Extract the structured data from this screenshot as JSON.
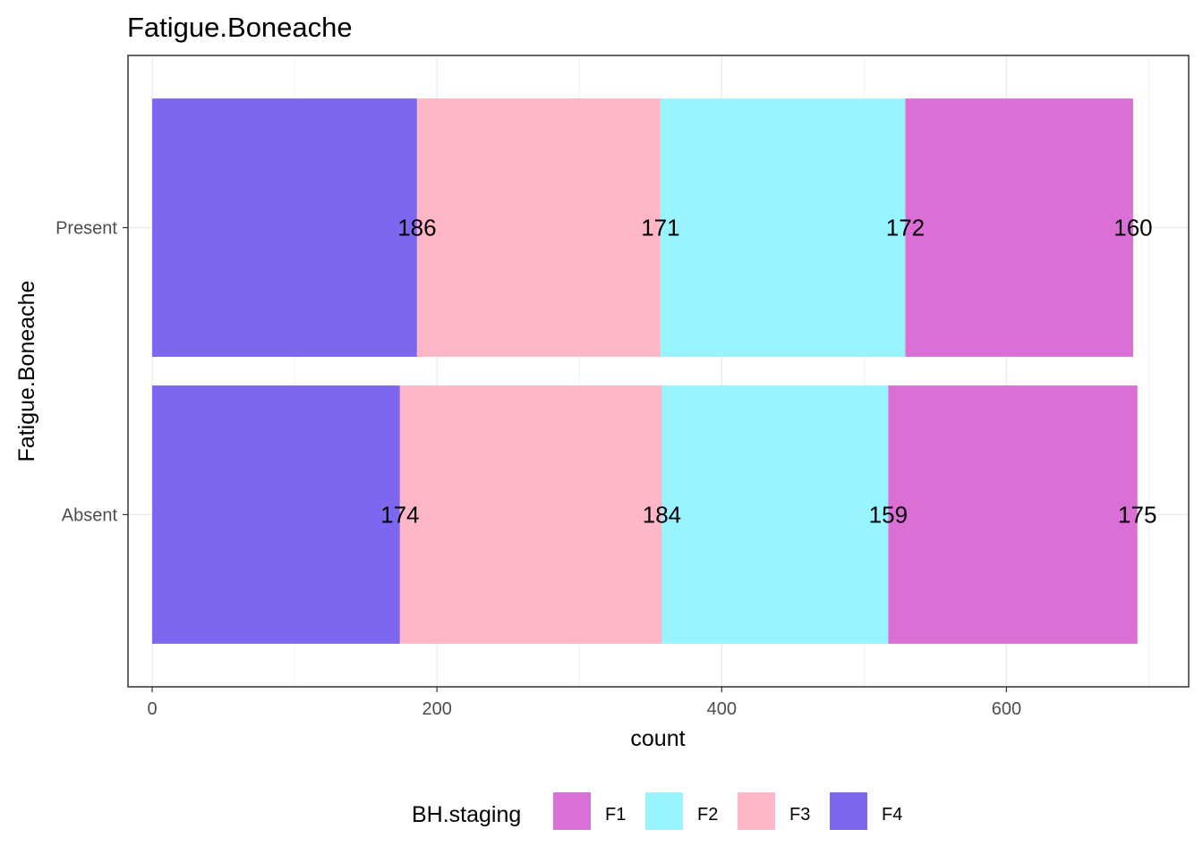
{
  "chart_data": {
    "type": "bar",
    "orientation": "horizontal",
    "stacked": true,
    "title": "Fatigue.Boneache",
    "xlabel": "count",
    "ylabel": "Fatigue.Boneache",
    "xlim": [
      -17,
      728
    ],
    "x_ticks": [
      0,
      200,
      400,
      600
    ],
    "categories": [
      "Absent",
      "Present"
    ],
    "series": [
      {
        "name": "F4",
        "color": "#7B68EE",
        "values": [
          174,
          186
        ]
      },
      {
        "name": "F3",
        "color": "#FFB6C7",
        "values": [
          184,
          171
        ]
      },
      {
        "name": "F2",
        "color": "#98F5FF",
        "values": [
          159,
          172
        ]
      },
      {
        "name": "F1",
        "color": "#DA70D6",
        "values": [
          175,
          160
        ]
      }
    ],
    "legend": {
      "title": "BH.staging",
      "position": "bottom",
      "order": [
        "F1",
        "F2",
        "F3",
        "F4"
      ]
    },
    "grid": true
  }
}
